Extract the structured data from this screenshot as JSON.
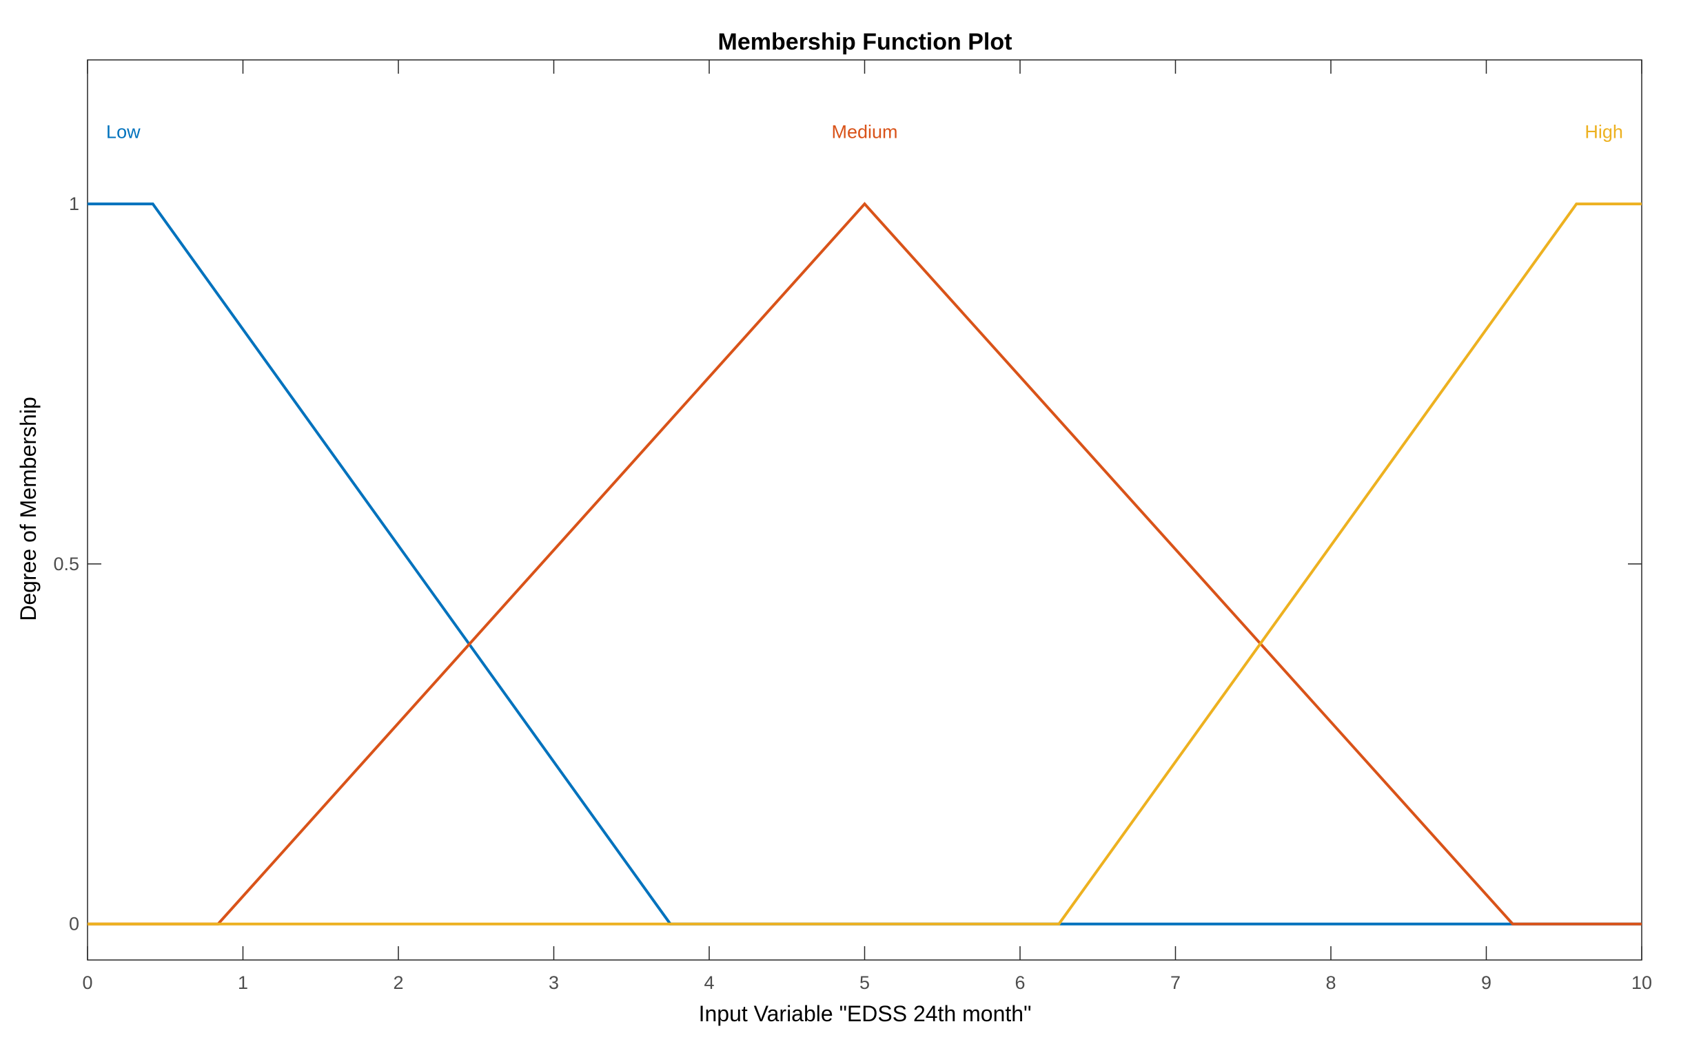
{
  "chart_data": {
    "type": "line",
    "title": "Membership Function Plot",
    "xlabel": "Input Variable \"EDSS 24th month\"",
    "ylabel": "Degree of Membership",
    "xlim": [
      0,
      10
    ],
    "ylim": [
      -0.05,
      1.2
    ],
    "xticks": [
      0,
      1,
      2,
      3,
      4,
      5,
      6,
      7,
      8,
      9,
      10
    ],
    "yticks": [
      0,
      0.5,
      1
    ],
    "grid": false,
    "series": [
      {
        "name": "Low",
        "color": "#0072BD",
        "x": [
          0,
          0.42,
          3.75,
          10
        ],
        "y": [
          1,
          1,
          0,
          0
        ]
      },
      {
        "name": "Medium",
        "color": "#D95319",
        "x": [
          0,
          0.84,
          5,
          9.17,
          10
        ],
        "y": [
          0,
          0,
          1,
          0,
          0
        ]
      },
      {
        "name": "High",
        "color": "#EDB120",
        "x": [
          0,
          6.25,
          9.58,
          10
        ],
        "y": [
          0,
          0,
          1,
          1
        ]
      }
    ],
    "labels": [
      {
        "text": "Low",
        "x": 0.12,
        "y": 1.1,
        "anchor": "start",
        "color": "#0072BD"
      },
      {
        "text": "Medium",
        "x": 5,
        "y": 1.1,
        "anchor": "middle",
        "color": "#D95319"
      },
      {
        "text": "High",
        "x": 9.88,
        "y": 1.1,
        "anchor": "end",
        "color": "#EDB120"
      }
    ]
  }
}
